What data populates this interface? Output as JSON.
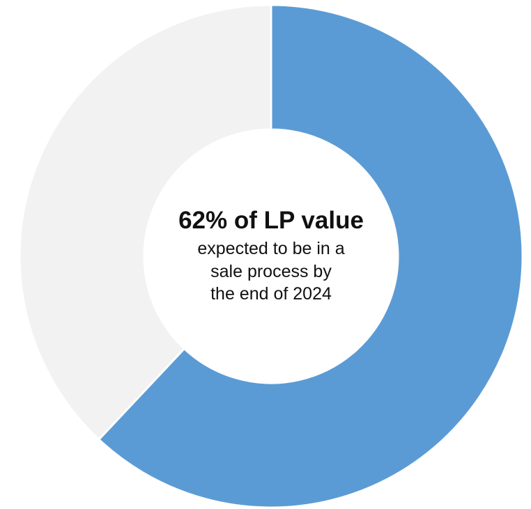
{
  "chart_data": {
    "type": "pie",
    "variant": "donut",
    "slices": [
      {
        "value": 62,
        "color": "#5b9bd5"
      },
      {
        "value": 38,
        "color": "#f2f2f2"
      }
    ],
    "center_text": {
      "headline": "62% of LP value",
      "lines": [
        "expected to be in a",
        "sale process by",
        "the end of 2024"
      ]
    }
  }
}
